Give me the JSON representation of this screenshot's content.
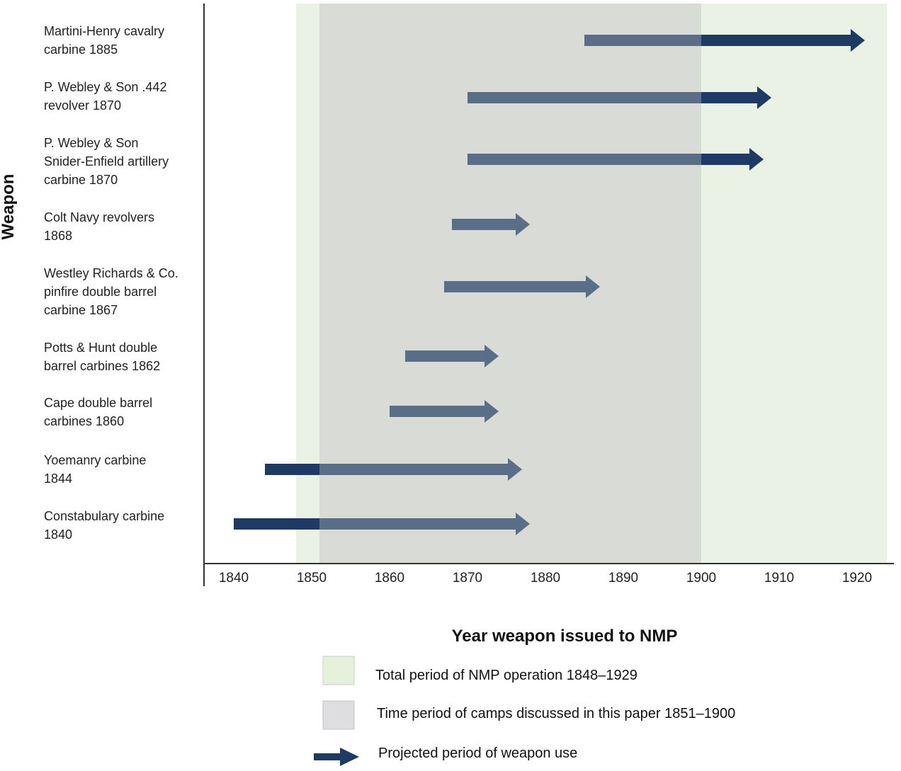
{
  "chart_data": {
    "type": "bar",
    "subtype": "horizontal-range-arrows",
    "xlabel": "Year weapon issued to NMP",
    "ylabel": "Weapon",
    "xlim": [
      1838,
      1924
    ],
    "xticks": [
      1840,
      1850,
      1860,
      1870,
      1880,
      1890,
      1900,
      1910,
      1920
    ],
    "grid": false,
    "categories": [
      [
        "Martini-Henry cavalry",
        "carbine 1885"
      ],
      [
        "P. Webley & Son .442",
        "revolver 1870"
      ],
      [
        "P. Webley & Son",
        "Snider-Enfield artillery",
        "carbine 1870"
      ],
      [
        "Colt Navy revolvers",
        "1868"
      ],
      [
        "Westley Richards & Co.",
        "pinfire double barrel",
        "carbine 1867"
      ],
      [
        "Potts & Hunt double",
        "barrel carbines 1862"
      ],
      [
        "Cape double barrel",
        "carbines 1860"
      ],
      [
        "Yoemanry carbine",
        "1844"
      ],
      [
        "Constabulary carbine",
        "1840"
      ]
    ],
    "ranges": [
      {
        "start": 1885,
        "end": 1921
      },
      {
        "start": 1870,
        "end": 1909
      },
      {
        "start": 1870,
        "end": 1908
      },
      {
        "start": 1868,
        "end": 1878
      },
      {
        "start": 1867,
        "end": 1887
      },
      {
        "start": 1862,
        "end": 1874
      },
      {
        "start": 1860,
        "end": 1874
      },
      {
        "start": 1844,
        "end": 1877
      },
      {
        "start": 1840,
        "end": 1878
      }
    ],
    "shaded_periods": [
      {
        "start": 1848,
        "end": 1929,
        "color": "#eaf2e6",
        "label": "Total period of NMP operation 1848–1929"
      },
      {
        "start": 1851,
        "end": 1900,
        "color": "#d8dbd6",
        "label": "Time period of camps discussed in this paper 1851–1900"
      }
    ],
    "legend": {
      "placement": "bottom",
      "arrow_label": "Projected period of weapon use"
    },
    "colors": {
      "arrow_dark": "#1f3b63",
      "arrow_muted": "#5a6e88",
      "axis": "#333333",
      "legend_green": "#e6f1dc",
      "legend_grey": "#dedde0"
    }
  }
}
